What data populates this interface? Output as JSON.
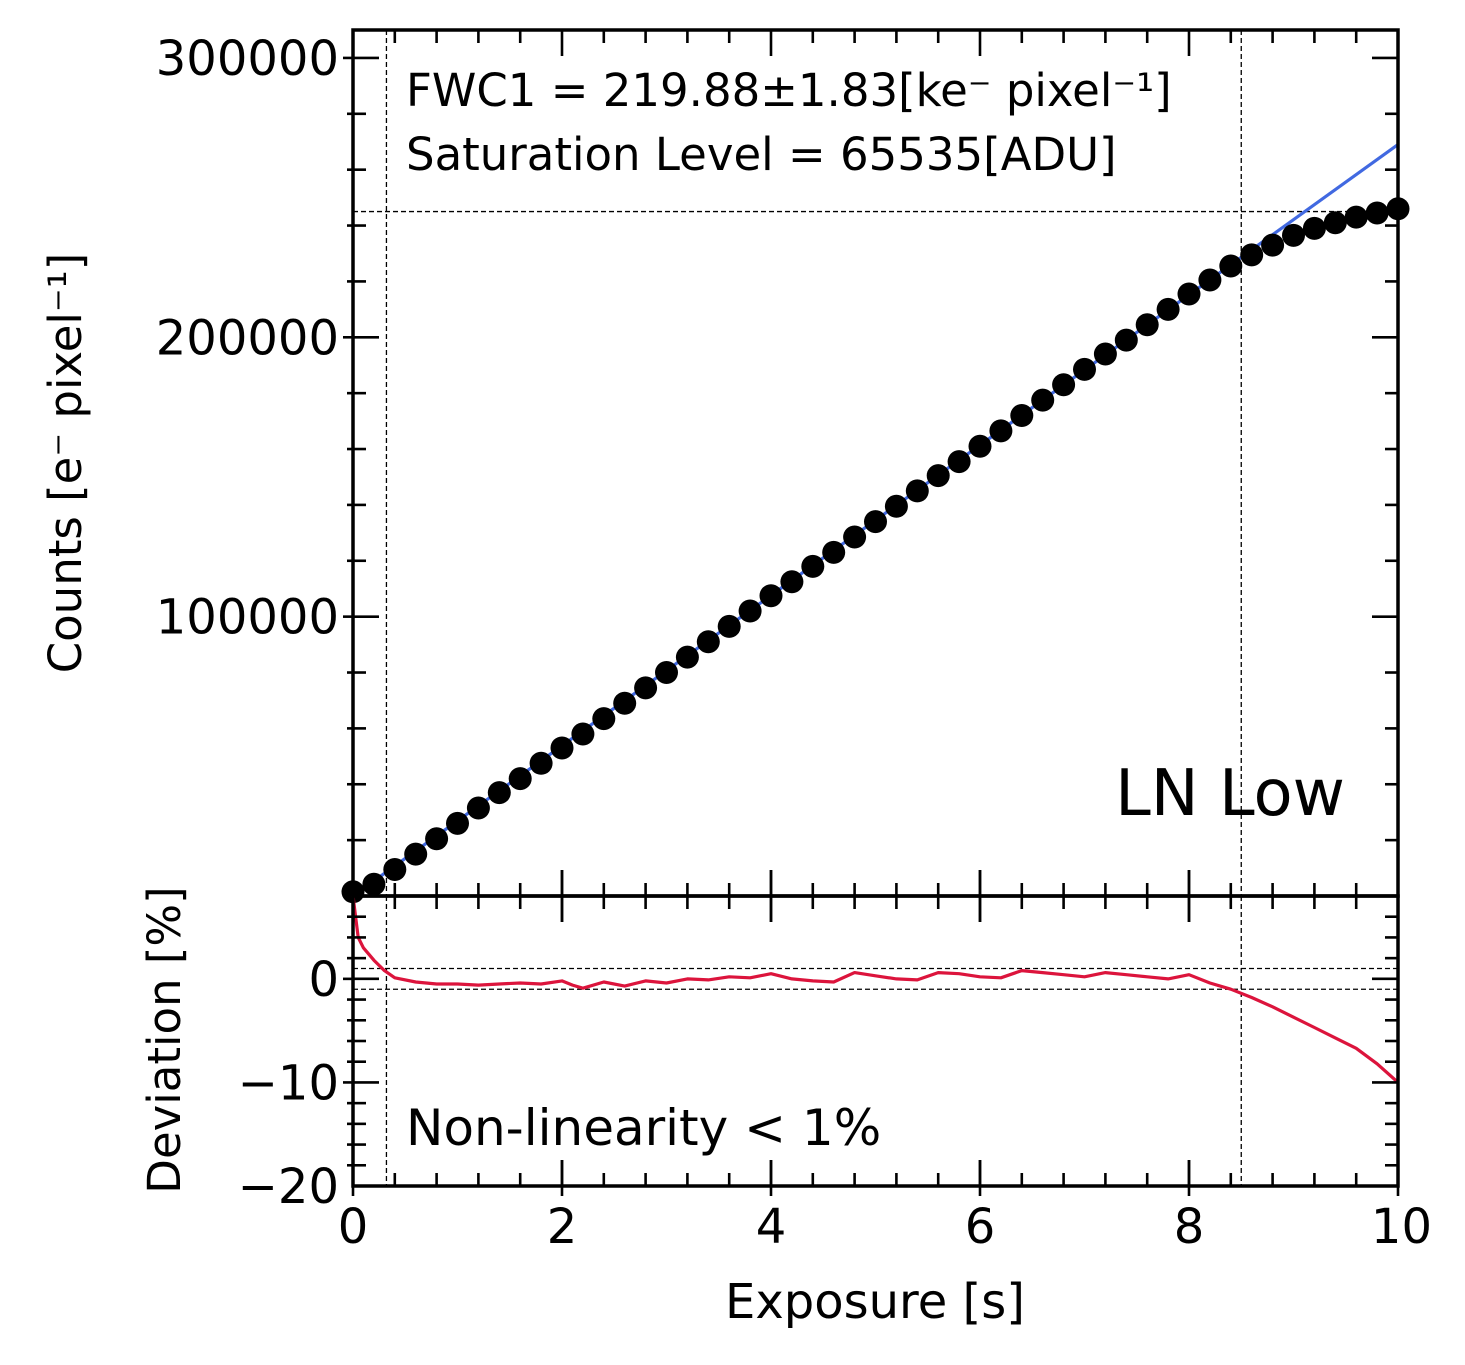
{
  "chart_data": [
    {
      "type": "scatter",
      "panel": "top",
      "xlim": [
        0,
        10
      ],
      "ylim": [
        0,
        310000
      ],
      "yticks": [
        100000,
        200000,
        300000
      ],
      "ytick_labels": [
        "100000",
        "200000",
        "300000"
      ],
      "yminor_step": 20000,
      "xticks": [
        0,
        2,
        4,
        6,
        8,
        10
      ],
      "xminor_step": 0.4,
      "ylabel": "Counts [e⁻ pixel⁻¹]",
      "annotation_line1": "FWC1 = 219.88±1.83[ke⁻ pixel⁻¹]",
      "annotation_line2": "Saturation Level = 65535[ADU]",
      "label": "LN Low",
      "saturation_y": 245000,
      "vlines_x": [
        0.32,
        8.5
      ],
      "series": [
        {
          "name": "measured counts",
          "marker": "filled-circle",
          "color": "#000000",
          "x": [
            0.0,
            0.2,
            0.4,
            0.6,
            0.8,
            1.0,
            1.2,
            1.4,
            1.6,
            1.8,
            2.0,
            2.2,
            2.4,
            2.6,
            2.8,
            3.0,
            3.2,
            3.4,
            3.6,
            3.8,
            4.0,
            4.2,
            4.4,
            4.6,
            4.8,
            5.0,
            5.2,
            5.4,
            5.6,
            5.8,
            6.0,
            6.2,
            6.4,
            6.6,
            6.8,
            7.0,
            7.2,
            7.4,
            7.6,
            7.8,
            8.0,
            8.2,
            8.4,
            8.6,
            8.8,
            9.0,
            9.2,
            9.4,
            9.6,
            9.8,
            10.0
          ],
          "y": [
            1500,
            4200,
            9500,
            15000,
            20500,
            26000,
            31500,
            37000,
            42000,
            47500,
            53000,
            58000,
            63500,
            69000,
            74500,
            80000,
            85500,
            91000,
            96500,
            102000,
            107500,
            112500,
            118000,
            123000,
            128500,
            134000,
            139500,
            145000,
            150500,
            155500,
            161000,
            166500,
            172000,
            177500,
            183000,
            188500,
            194000,
            199000,
            204500,
            210000,
            215500,
            220500,
            225500,
            229500,
            233000,
            236500,
            239000,
            241000,
            243000,
            244500,
            246000
          ]
        },
        {
          "name": "linear fit",
          "style": "line",
          "color": "#4169e1",
          "x": [
            0.0,
            10.0
          ],
          "y": [
            0,
            269000
          ]
        }
      ]
    },
    {
      "type": "line",
      "panel": "bottom",
      "xlim": [
        0,
        10
      ],
      "ylim": [
        -20,
        8
      ],
      "yticks": [
        0,
        -10,
        -20
      ],
      "ytick_labels": [
        "0",
        "−10",
        "−20"
      ],
      "yminor_step": 2,
      "xticks": [
        0,
        2,
        4,
        6,
        8,
        10
      ],
      "xtick_labels": [
        "0",
        "2",
        "4",
        "6",
        "8",
        "10"
      ],
      "xminor_step": 0.4,
      "xlabel": "Exposure [s]",
      "ylabel": "Deviation [%]",
      "label": "Non-linearity < 1%",
      "hlines_y": [
        1,
        -1
      ],
      "vlines_x": [
        0.32,
        8.5
      ],
      "series": [
        {
          "name": "deviation",
          "color": "#dc143c",
          "x": [
            0.0,
            0.05,
            0.1,
            0.2,
            0.3,
            0.4,
            0.6,
            0.8,
            1.0,
            1.2,
            1.4,
            1.6,
            1.8,
            2.0,
            2.1,
            2.2,
            2.4,
            2.6,
            2.8,
            3.0,
            3.2,
            3.4,
            3.6,
            3.8,
            4.0,
            4.2,
            4.4,
            4.6,
            4.8,
            5.0,
            5.2,
            5.4,
            5.6,
            5.8,
            6.0,
            6.2,
            6.4,
            6.6,
            6.8,
            7.0,
            7.2,
            7.4,
            7.6,
            7.8,
            8.0,
            8.2,
            8.4,
            8.6,
            8.8,
            9.0,
            9.2,
            9.4,
            9.6,
            9.8,
            10.0
          ],
          "y": [
            8,
            4,
            3,
            1.8,
            0.8,
            0.1,
            -0.3,
            -0.5,
            -0.5,
            -0.6,
            -0.5,
            -0.4,
            -0.5,
            -0.2,
            -0.6,
            -0.9,
            -0.3,
            -0.7,
            -0.2,
            -0.4,
            0.0,
            -0.1,
            0.2,
            0.1,
            0.5,
            0.0,
            -0.2,
            -0.3,
            0.6,
            0.3,
            0.0,
            -0.1,
            0.6,
            0.5,
            0.2,
            0.1,
            0.8,
            0.6,
            0.4,
            0.2,
            0.6,
            0.4,
            0.2,
            0.0,
            0.4,
            -0.4,
            -1.0,
            -1.8,
            -2.7,
            -3.7,
            -4.7,
            -5.7,
            -6.7,
            -8.2,
            -10.0
          ]
        }
      ]
    }
  ]
}
